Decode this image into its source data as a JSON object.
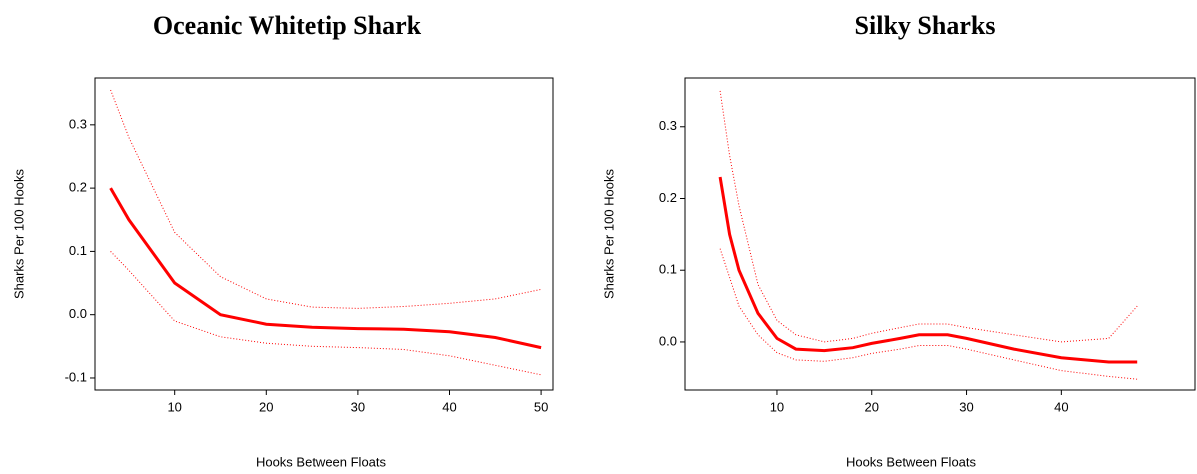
{
  "chart_data": [
    {
      "type": "line",
      "title": "Oceanic Whitetip Shark",
      "x_label": "Hooks Between Floats",
      "y_label": "Sharks Per 100 Hooks",
      "x": [
        3,
        5,
        10,
        15,
        20,
        25,
        30,
        35,
        40,
        45,
        50
      ],
      "series": [
        {
          "color": "#ff0000",
          "style": "solid",
          "values": [
            0.2,
            0.15,
            0.05,
            0.0,
            -0.015,
            -0.02,
            -0.022,
            -0.023,
            -0.027,
            -0.036,
            -0.052
          ]
        },
        {
          "color": "#ff0000",
          "style": "dotted",
          "values": [
            0.355,
            0.28,
            0.13,
            0.06,
            0.025,
            0.012,
            0.01,
            0.013,
            0.018,
            0.025,
            0.04
          ]
        },
        {
          "color": "#ff0000",
          "style": "dotted",
          "values": [
            0.1,
            0.07,
            -0.01,
            -0.035,
            -0.045,
            -0.05,
            -0.052,
            -0.055,
            -0.065,
            -0.08,
            -0.095
          ]
        }
      ],
      "xlim": [
        1.3,
        51.3
      ],
      "xticks": [
        10,
        20,
        30,
        40,
        50
      ],
      "ylim": [
        -0.119,
        0.374
      ],
      "yticks": [
        -0.1,
        {
          "value": 0,
          "label": "0.0"
        },
        0.1,
        0.2,
        0.3
      ]
    },
    {
      "type": "line",
      "title": "Silky Sharks",
      "x_label": "Hooks Between Floats",
      "y_label": "Sharks Per 100 Hooks",
      "x": [
        4,
        5,
        6,
        8,
        10,
        12,
        15,
        18,
        20,
        23,
        25,
        28,
        30,
        35,
        40,
        45,
        48
      ],
      "series": [
        {
          "color": "#ff0000",
          "style": "solid",
          "values": [
            0.23,
            0.15,
            0.1,
            0.04,
            0.005,
            -0.01,
            -0.012,
            -0.008,
            -0.002,
            0.005,
            0.01,
            0.01,
            0.005,
            -0.01,
            -0.022,
            -0.028,
            -0.028
          ]
        },
        {
          "color": "#ff0000",
          "style": "dotted",
          "values": [
            0.35,
            0.26,
            0.19,
            0.08,
            0.03,
            0.01,
            0.0,
            0.005,
            0.012,
            0.02,
            0.025,
            0.025,
            0.02,
            0.01,
            0.0,
            0.005,
            0.05
          ]
        },
        {
          "color": "#ff0000",
          "style": "dotted",
          "values": [
            0.13,
            0.09,
            0.05,
            0.01,
            -0.015,
            -0.025,
            -0.027,
            -0.022,
            -0.016,
            -0.01,
            -0.005,
            -0.005,
            -0.01,
            -0.025,
            -0.04,
            -0.048,
            -0.052
          ]
        }
      ],
      "xlim": [
        0.3,
        54.1
      ],
      "xticks": [
        10,
        20,
        30,
        40
      ],
      "ylim": [
        -0.067,
        0.368
      ],
      "yticks": [
        {
          "value": 0,
          "label": "0.0"
        },
        0.1,
        0.2,
        0.3
      ]
    }
  ]
}
